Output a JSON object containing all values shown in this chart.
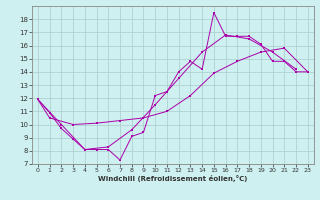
{
  "xlabel": "Windchill (Refroidissement éolien,°C)",
  "bg_color": "#cff0f0",
  "grid_color": "#aacccc",
  "line_color": "#aa00aa",
  "xlim": [
    -0.5,
    23.5
  ],
  "ylim": [
    7,
    19
  ],
  "xticks": [
    0,
    1,
    2,
    3,
    4,
    5,
    6,
    7,
    8,
    9,
    10,
    11,
    12,
    13,
    14,
    15,
    16,
    17,
    18,
    19,
    20,
    21,
    22,
    23
  ],
  "yticks": [
    7,
    8,
    9,
    10,
    11,
    12,
    13,
    14,
    15,
    16,
    17,
    18
  ],
  "line1_x": [
    0,
    1,
    2,
    3,
    4,
    5,
    6,
    7,
    8,
    9,
    10,
    11,
    12,
    13,
    14,
    15,
    16,
    17,
    18,
    19,
    20,
    21,
    22,
    23
  ],
  "line1_y": [
    11.9,
    10.9,
    9.7,
    8.9,
    8.1,
    8.1,
    8.1,
    7.3,
    9.1,
    9.4,
    12.2,
    12.5,
    14.0,
    14.8,
    14.2,
    18.5,
    16.7,
    16.7,
    16.7,
    16.1,
    14.8,
    14.8,
    14.0,
    14.0
  ],
  "line2_x": [
    0,
    1,
    3,
    5,
    7,
    9,
    11,
    13,
    15,
    17,
    19,
    21,
    23
  ],
  "line2_y": [
    11.9,
    10.5,
    10.0,
    10.1,
    10.3,
    10.5,
    11.0,
    12.2,
    13.9,
    14.8,
    15.5,
    15.8,
    14.0
  ],
  "line3_x": [
    0,
    2,
    4,
    6,
    8,
    10,
    12,
    14,
    16,
    18,
    20,
    22
  ],
  "line3_y": [
    11.9,
    10.0,
    8.1,
    8.3,
    9.6,
    11.5,
    13.5,
    15.5,
    16.8,
    16.5,
    15.5,
    14.2
  ]
}
